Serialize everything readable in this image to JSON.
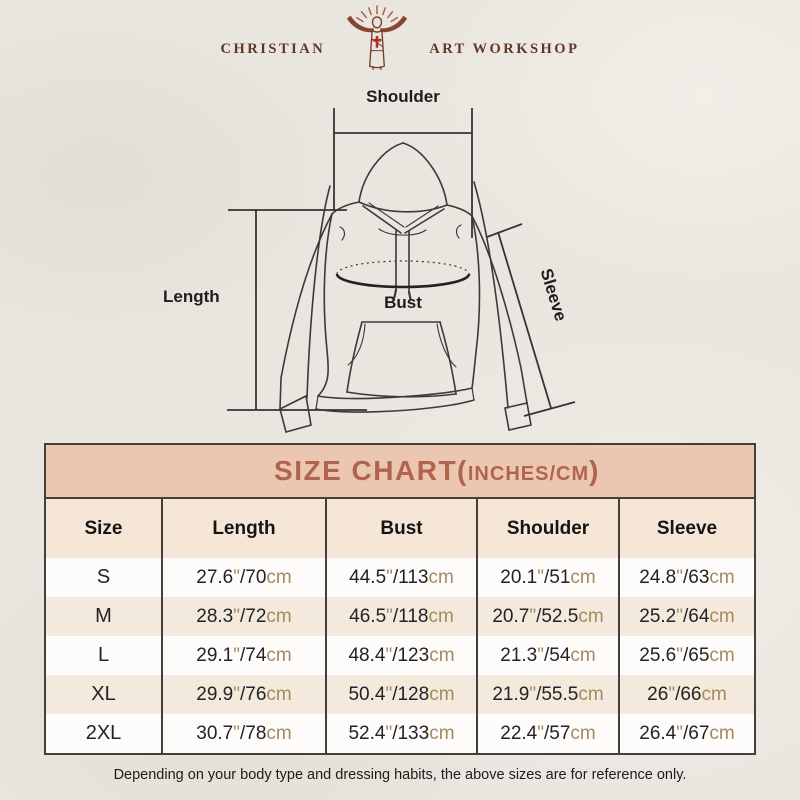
{
  "logo": {
    "left_text": "CHRISTIAN",
    "right_text": "ART WORKSHOP",
    "icon": "jesus-sunburst-cross-icon",
    "colors": {
      "text": "#64352a",
      "figure": "#8a4434",
      "rays": "#a5583c",
      "cross": "#a83226"
    }
  },
  "diagram": {
    "type": "hoodie-measurement-guide",
    "labels": {
      "shoulder": "Shoulder",
      "length": "Length",
      "bust": "Bust",
      "sleeve": "Sleeve"
    },
    "line_color": "#3a3a3a"
  },
  "size_chart": {
    "title_main": "SIZE CHART(",
    "title_sub": "INCHES/CM",
    "title_close": ")",
    "colors": {
      "band_bg": "#ebc7b1",
      "title_color": "#b0644d",
      "header_row_bg": "#f6e6d7",
      "row_bg": "#fdfcfa",
      "alt_row_bg": "#f3e9dc",
      "unit_color": "#a68a5e",
      "border_color": "#43403b"
    }
  },
  "chart_data": {
    "type": "table",
    "title": "SIZE CHART(INCHES/CM)",
    "columns": [
      "Size",
      "Length",
      "Bust",
      "Shoulder",
      "Sleeve"
    ],
    "rows": [
      [
        "S",
        "27.6\"/70cm",
        "44.5\"/113cm",
        "20.1\"/51cm",
        "24.8\"/63cm"
      ],
      [
        "M",
        "28.3\"/72cm",
        "46.5\"/118cm",
        "20.7\"/52.5cm",
        "25.2\"/64cm"
      ],
      [
        "L",
        "29.1\"/74cm",
        "48.4\"/123cm",
        "21.3\"/54cm",
        "25.6\"/65cm"
      ],
      [
        "XL",
        "29.9\"/76cm",
        "50.4\"/128cm",
        "21.9\"/55.5cm",
        "26\"/66cm"
      ],
      [
        "2XL",
        "30.7\"/78cm",
        "52.4\"/133cm",
        "22.4\"/57cm",
        "26.4\"/67cm"
      ]
    ]
  },
  "footer": {
    "note": "Depending on your body type and dressing habits, the above sizes are for reference only."
  }
}
